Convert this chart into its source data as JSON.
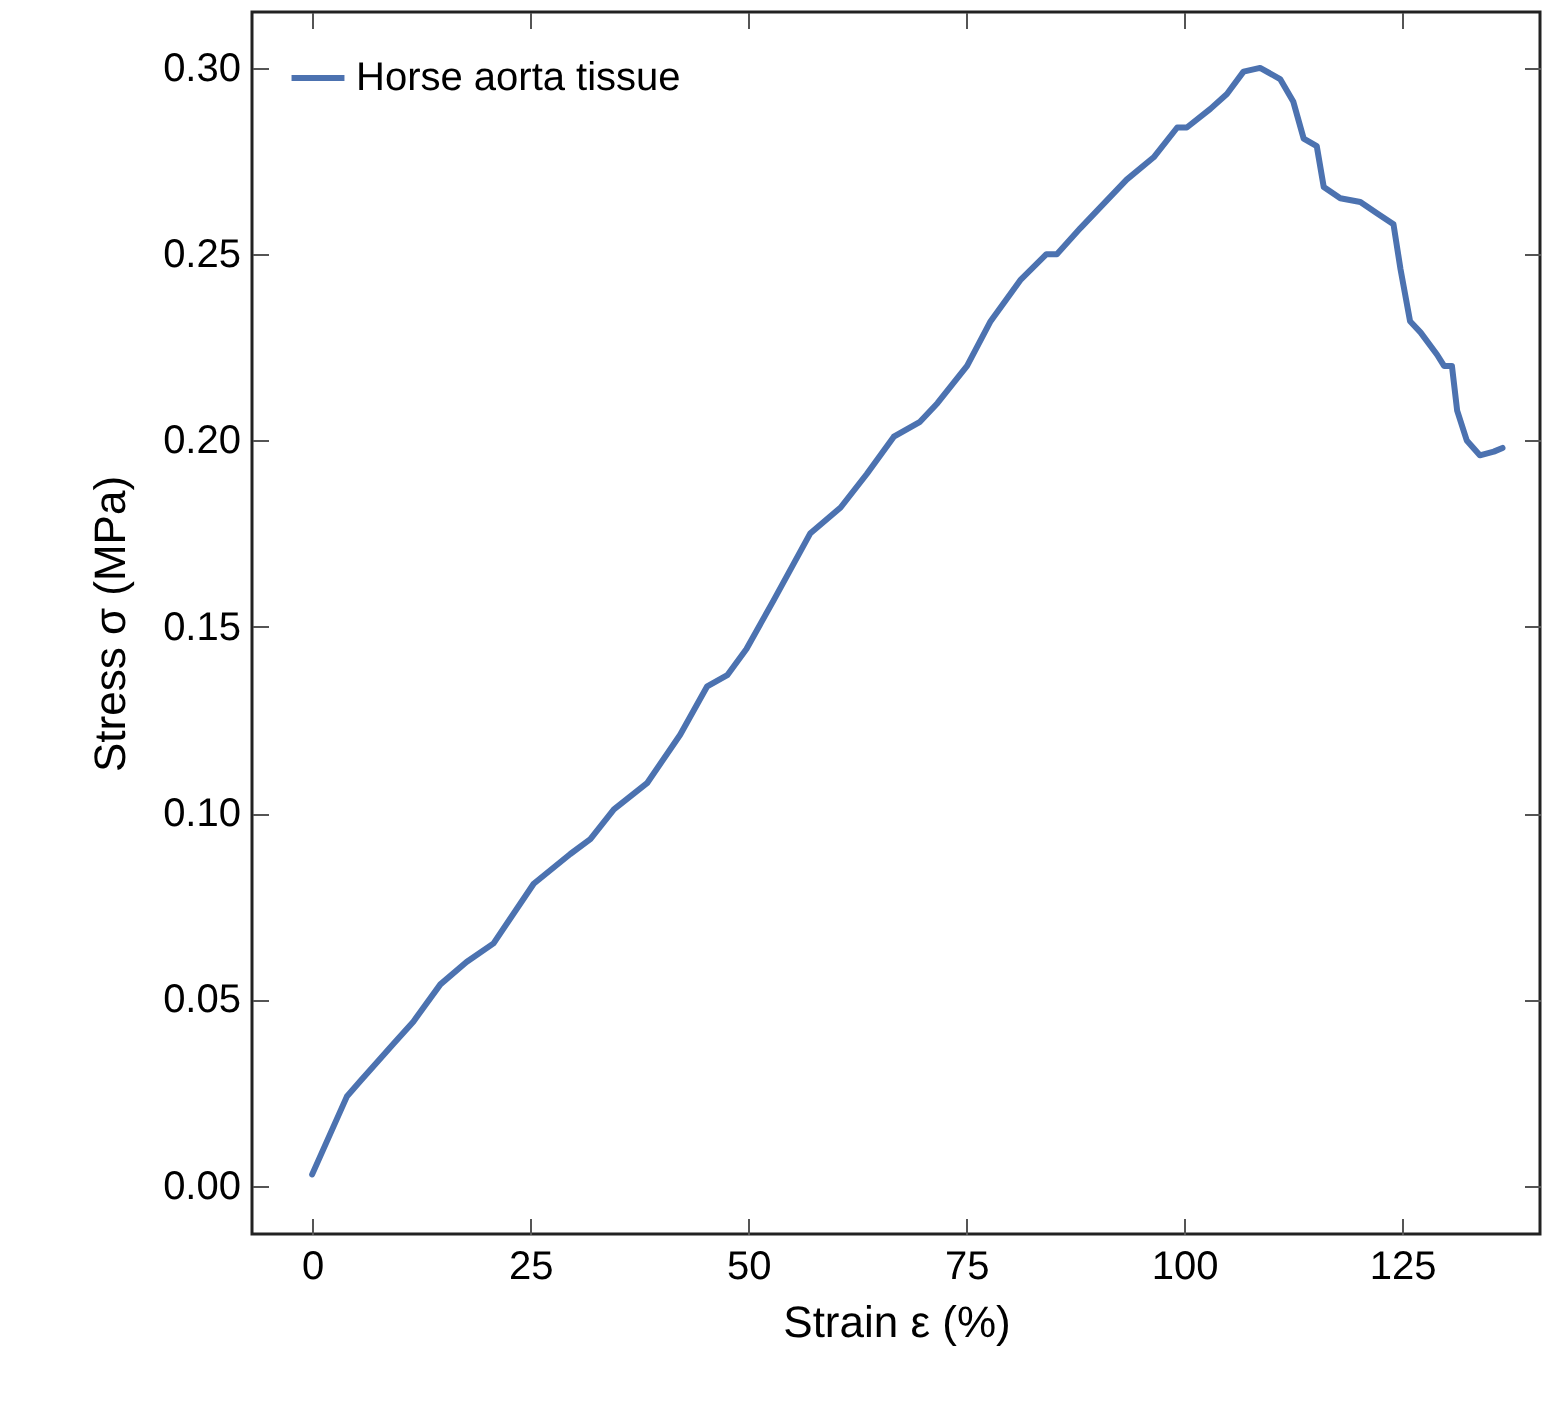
{
  "chart_data": {
    "type": "line",
    "xlabel": "Strain ε (%)",
    "ylabel": "Stress σ (MPa)",
    "xlim": [
      -6.9,
      140.8
    ],
    "ylim": [
      -0.013,
      0.315
    ],
    "xticks": [
      0,
      25,
      50,
      75,
      100,
      125
    ],
    "yticks": [
      {
        "value": 0,
        "label": "0.00"
      },
      {
        "value": 0.05,
        "label": "0.05"
      },
      {
        "value": 0.1,
        "label": "0.10"
      },
      {
        "value": 0.15,
        "label": "0.15"
      },
      {
        "value": 0.2,
        "label": "0.20"
      },
      {
        "value": 0.25,
        "label": "0.25"
      },
      {
        "value": 0.3,
        "label": "0.30"
      }
    ],
    "grid": false,
    "legend": "top left",
    "series": [
      {
        "name": "Horse aorta tissue",
        "color": "#4c72b0",
        "x": [
          0,
          4.0,
          5.5,
          9.3,
          11.6,
          14.7,
          17.7,
          20.8,
          25.4,
          29.6,
          31.9,
          34.6,
          38.4,
          42.2,
          45.3,
          47.6,
          49.8,
          52.9,
          57.1,
          60.6,
          63.6,
          66.7,
          69.7,
          71.7,
          75.1,
          77.8,
          81.2,
          84.2,
          85.4,
          88.1,
          93.4,
          96.5,
          99.2,
          100.3,
          103.0,
          104.9,
          106.8,
          108.7,
          111.0,
          112.5,
          113.7,
          115.2,
          116.0,
          117.9,
          120.2,
          122.1,
          124.0,
          124.8,
          125.9,
          127.1,
          129.0,
          129.8,
          130.7,
          131.3,
          132.4,
          133.9,
          135.5,
          136.5
        ],
        "values": [
          0.003,
          0.024,
          0.028,
          0.038,
          0.044,
          0.054,
          0.06,
          0.065,
          0.081,
          0.089,
          0.093,
          0.101,
          0.108,
          0.121,
          0.134,
          0.137,
          0.144,
          0.157,
          0.175,
          0.182,
          0.191,
          0.201,
          0.205,
          0.21,
          0.22,
          0.232,
          0.243,
          0.25,
          0.25,
          0.257,
          0.27,
          0.276,
          0.284,
          0.284,
          0.289,
          0.293,
          0.299,
          0.3,
          0.297,
          0.291,
          0.281,
          0.279,
          0.268,
          0.265,
          0.264,
          0.261,
          0.258,
          0.246,
          0.232,
          0.229,
          0.223,
          0.22,
          0.22,
          0.208,
          0.2,
          0.196,
          0.197,
          0.198
        ]
      }
    ]
  }
}
